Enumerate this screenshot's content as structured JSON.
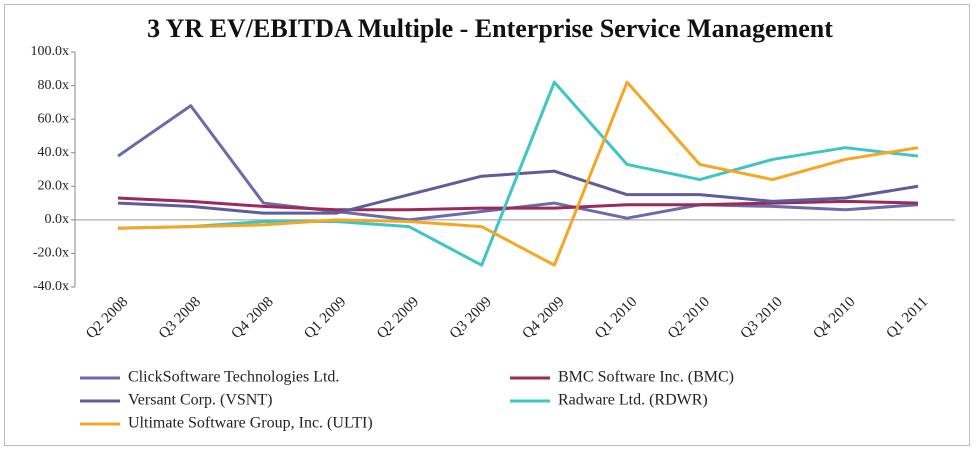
{
  "chart_data": {
    "type": "line",
    "title": "3 YR EV/EBITDA Multiple - Enterprise Service Management",
    "categories": [
      "Q2 2008",
      "Q3 2008",
      "Q4 2008",
      "Q1 2009",
      "Q2 2009",
      "Q3 2009",
      "Q4 2009",
      "Q1 2010",
      "Q2 2010",
      "Q3 2010",
      "Q4 2010",
      "Q1 2011"
    ],
    "series": [
      {
        "name": "ClickSoftware Technologies Ltd.",
        "color": "#6b6bab",
        "values": [
          38,
          68,
          10,
          5,
          0,
          5,
          10,
          1,
          9,
          8,
          6,
          9
        ]
      },
      {
        "name": "BMC Software Inc. (BMC)",
        "color": "#9b2a5a",
        "values": [
          13,
          11,
          8,
          6,
          6,
          7,
          7,
          9,
          9,
          10,
          11,
          10
        ]
      },
      {
        "name": "Versant Corp. (VSNT)",
        "color": "#5d5d9e",
        "values": [
          10,
          8,
          4,
          4,
          15,
          26,
          29,
          15,
          15,
          11,
          13,
          20
        ]
      },
      {
        "name": "Radware Ltd. (RDWR)",
        "color": "#3cc6c6",
        "values": [
          -5,
          -4,
          -1,
          -1,
          -4,
          -27,
          82,
          33,
          24,
          36,
          43,
          38
        ]
      },
      {
        "name": "Ultimate Software Group, Inc. (ULTI)",
        "color": "#f5a623",
        "values": [
          -5,
          -4,
          -3,
          0,
          -1,
          -4,
          -27,
          82,
          33,
          24,
          36,
          43
        ]
      }
    ],
    "ylim": [
      -40,
      100
    ],
    "yticks": [
      {
        "value": -40,
        "label": "-40.0x"
      },
      {
        "value": -20,
        "label": "-20.0x"
      },
      {
        "value": 0,
        "label": "0.0x"
      },
      {
        "value": 20,
        "label": "20.0x"
      },
      {
        "value": 40,
        "label": "40.0x"
      },
      {
        "value": 60,
        "label": "60.0x"
      },
      {
        "value": 80,
        "label": "80.0x"
      },
      {
        "value": 100,
        "label": "100.0x"
      }
    ],
    "grid": false
  }
}
